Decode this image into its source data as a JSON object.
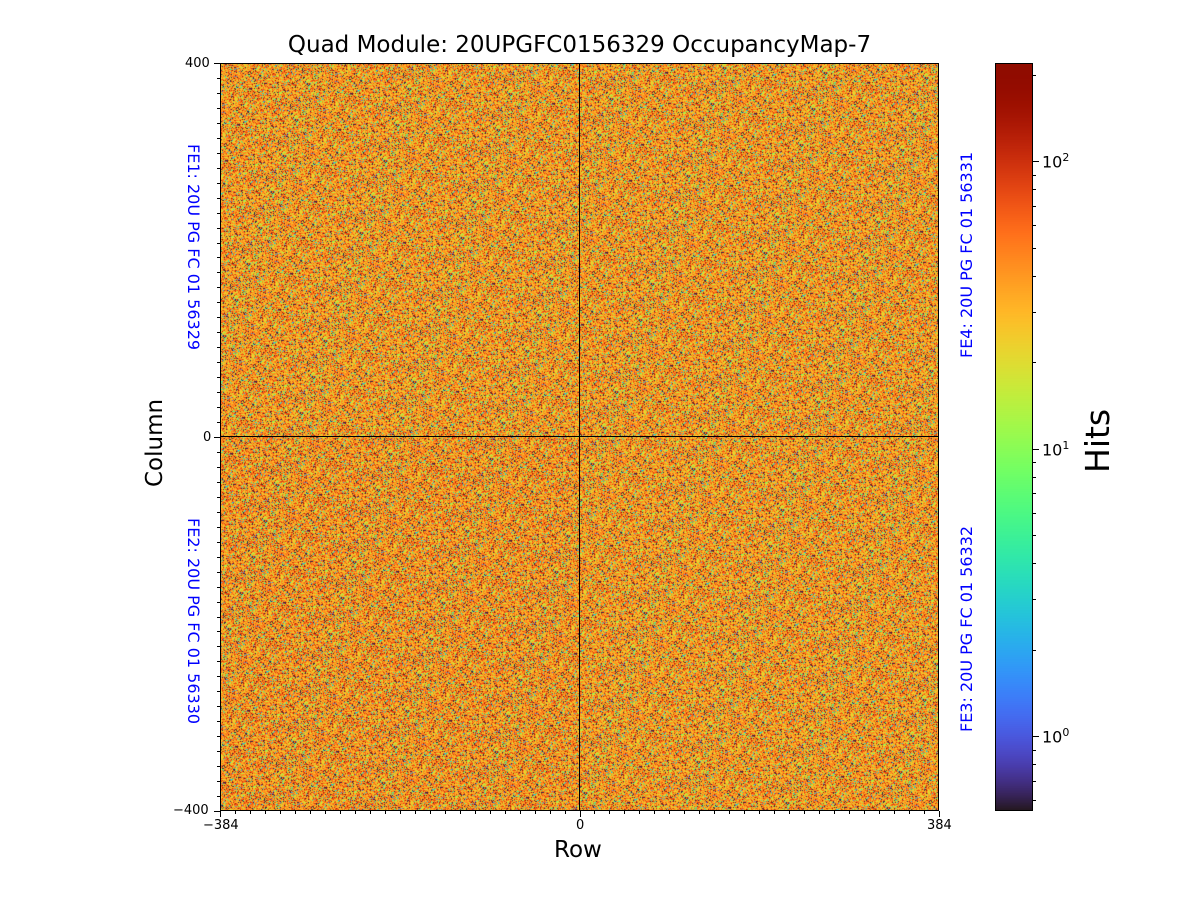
{
  "chart_data": {
    "type": "heatmap",
    "title": "Quad Module: 20UPGFC0156329 OccupancyMap-7",
    "xlabel": "Row",
    "ylabel": "Column",
    "xlim": [
      -384,
      384
    ],
    "ylim": [
      -400,
      400
    ],
    "x_ticks": [
      {
        "value": -384,
        "label": "−384"
      },
      {
        "value": 0,
        "label": "0"
      },
      {
        "value": 384,
        "label": "384"
      }
    ],
    "y_ticks": [
      {
        "value": 400,
        "label": "400"
      },
      {
        "value": 0,
        "label": "0"
      },
      {
        "value": -400,
        "label": "−400"
      }
    ],
    "colorbar": {
      "label": "Hits",
      "scale": "log",
      "range": [
        0.55,
        220
      ],
      "ticks": [
        {
          "value": 1,
          "base": "10",
          "exp": "0"
        },
        {
          "value": 10,
          "base": "10",
          "exp": "1"
        },
        {
          "value": 100,
          "base": "10",
          "exp": "2"
        }
      ],
      "colormap": "turbo"
    },
    "quadrants": [
      {
        "id": "FE1",
        "label": "FE1: 20U PG FC 01 56329",
        "x_range": [
          -384,
          0
        ],
        "y_range": [
          0,
          400
        ],
        "typical_hits": 40
      },
      {
        "id": "FE4",
        "label": "FE4: 20U PG FC 01 56331",
        "x_range": [
          0,
          384
        ],
        "y_range": [
          0,
          400
        ],
        "typical_hits": 40
      },
      {
        "id": "FE2",
        "label": "FE2: 20U PG FC 01 56330",
        "x_range": [
          -384,
          0
        ],
        "y_range": [
          -400,
          0
        ],
        "typical_hits": 42
      },
      {
        "id": "FE3",
        "label": "FE3: 20U PG FC 01 56332",
        "x_range": [
          0,
          384
        ],
        "y_range": [
          -400,
          0
        ],
        "typical_hits": 40
      }
    ],
    "colors": {
      "fe_label": "#0000ff",
      "axis": "#000000"
    }
  }
}
